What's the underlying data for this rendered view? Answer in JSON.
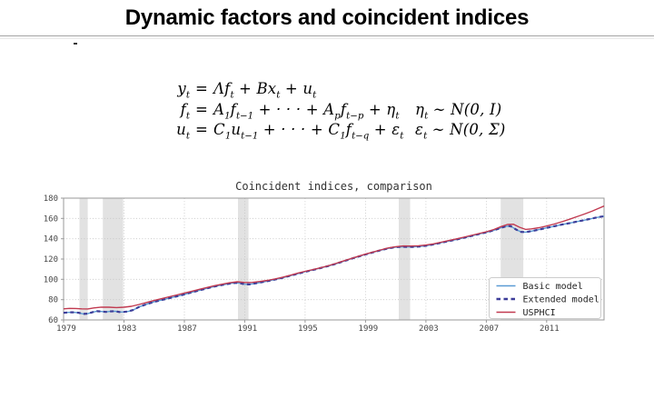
{
  "slide": {
    "title": "Dynamic factors and coincident indices"
  },
  "equations": {
    "rows": [
      {
        "lhs": "y_{t}",
        "rhs": "Λf_{t} + Bx_{t} + u_{t}",
        "dist": ""
      },
      {
        "lhs": "f_{t}",
        "rhs": "A_{1}f_{t−1} + · · · + A_{p}f_{t−p} + η_{t}",
        "dist": "η_{t} ∼ N(0, I)"
      },
      {
        "lhs": "u_{t}",
        "rhs": "C_{1}u_{t−1} + · · · + C_{1}f_{t−q} + ε_{t}",
        "dist": "ε_{t} ∼ N(0, Σ)"
      }
    ]
  },
  "chart_data": {
    "type": "line",
    "title": "Coincident indices, comparison",
    "xlabel": "",
    "ylabel": "",
    "xlim": [
      1979,
      2014.8
    ],
    "ylim": [
      60,
      180
    ],
    "xticks": [
      1979,
      1983,
      1987,
      1991,
      1995,
      1999,
      2003,
      2007,
      2011
    ],
    "yticks": [
      60,
      80,
      100,
      120,
      140,
      160,
      180
    ],
    "grid": true,
    "legend_position": "lower right",
    "recession_bands": [
      [
        1980.05,
        1980.6
      ],
      [
        1981.6,
        1982.95
      ],
      [
        1990.55,
        1991.25
      ],
      [
        2001.2,
        2001.95
      ],
      [
        2007.95,
        2009.45
      ]
    ],
    "colors": {
      "band": "#e2e2e2",
      "grid": "#c4c4c4",
      "frame": "#999999",
      "tick_text": "#444444",
      "legend_border": "#cccccc",
      "background": "#ffffff"
    },
    "series": [
      {
        "name": "Basic model",
        "color": "#5a9bd4",
        "style": "solid",
        "points": [
          [
            1979.0,
            67.0
          ],
          [
            1979.3,
            67.4
          ],
          [
            1979.6,
            67.5
          ],
          [
            1980.0,
            67.1
          ],
          [
            1980.3,
            65.9
          ],
          [
            1980.6,
            66.2
          ],
          [
            1980.9,
            67.5
          ],
          [
            1981.2,
            68.6
          ],
          [
            1981.5,
            68.3
          ],
          [
            1981.8,
            67.9
          ],
          [
            1982.1,
            68.4
          ],
          [
            1982.4,
            68.6
          ],
          [
            1982.7,
            67.8
          ],
          [
            1983.0,
            67.9
          ],
          [
            1983.3,
            68.4
          ],
          [
            1983.6,
            69.8
          ],
          [
            1984.0,
            72.8
          ],
          [
            1984.5,
            75.5
          ],
          [
            1985.0,
            77.8
          ],
          [
            1985.5,
            79.6
          ],
          [
            1986.0,
            81.4
          ],
          [
            1986.5,
            83.3
          ],
          [
            1987.0,
            85.2
          ],
          [
            1987.5,
            87.2
          ],
          [
            1988.0,
            89.2
          ],
          [
            1988.5,
            91.2
          ],
          [
            1989.0,
            93.0
          ],
          [
            1989.5,
            94.5
          ],
          [
            1990.0,
            95.8
          ],
          [
            1990.4,
            96.5
          ],
          [
            1990.7,
            96.2
          ],
          [
            1991.0,
            95.2
          ],
          [
            1991.3,
            95.0
          ],
          [
            1991.6,
            95.7
          ],
          [
            1992.0,
            96.8
          ],
          [
            1992.5,
            98.2
          ],
          [
            1993.0,
            99.8
          ],
          [
            1993.5,
            101.5
          ],
          [
            1994.0,
            103.5
          ],
          [
            1994.5,
            105.5
          ],
          [
            1995.0,
            107.5
          ],
          [
            1995.5,
            109.2
          ],
          [
            1996.0,
            111.0
          ],
          [
            1996.5,
            113.0
          ],
          [
            1997.0,
            115.2
          ],
          [
            1997.5,
            117.6
          ],
          [
            1998.0,
            120.0
          ],
          [
            1998.5,
            122.3
          ],
          [
            1999.0,
            124.5
          ],
          [
            1999.5,
            126.6
          ],
          [
            2000.0,
            128.7
          ],
          [
            2000.5,
            130.5
          ],
          [
            2001.0,
            131.7
          ],
          [
            2001.4,
            132.1
          ],
          [
            2001.8,
            131.9
          ],
          [
            2002.2,
            132.0
          ],
          [
            2002.6,
            132.4
          ],
          [
            2003.0,
            133.1
          ],
          [
            2003.5,
            134.4
          ],
          [
            2004.0,
            136.0
          ],
          [
            2004.5,
            137.6
          ],
          [
            2005.0,
            139.2
          ],
          [
            2005.5,
            140.9
          ],
          [
            2006.0,
            142.7
          ],
          [
            2006.5,
            144.5
          ],
          [
            2007.0,
            146.3
          ],
          [
            2007.5,
            148.3
          ],
          [
            2008.0,
            150.9
          ],
          [
            2008.3,
            152.2
          ],
          [
            2008.6,
            152.5
          ],
          [
            2009.0,
            148.8
          ],
          [
            2009.3,
            146.8
          ],
          [
            2009.6,
            146.5
          ],
          [
            2010.0,
            147.5
          ],
          [
            2010.5,
            149.0
          ],
          [
            2011.0,
            150.7
          ],
          [
            2011.5,
            152.3
          ],
          [
            2012.0,
            153.9
          ],
          [
            2012.5,
            155.3
          ],
          [
            2013.0,
            156.9
          ],
          [
            2013.5,
            158.3
          ],
          [
            2014.0,
            159.9
          ],
          [
            2014.4,
            161.2
          ],
          [
            2014.8,
            162.2
          ]
        ]
      },
      {
        "name": "Extended model",
        "color": "#3d3d99",
        "style": "dashed",
        "points": [
          [
            1979.0,
            67.0
          ],
          [
            1979.3,
            67.4
          ],
          [
            1979.6,
            67.5
          ],
          [
            1980.0,
            67.1
          ],
          [
            1980.3,
            65.9
          ],
          [
            1980.6,
            66.2
          ],
          [
            1980.9,
            67.5
          ],
          [
            1981.2,
            68.6
          ],
          [
            1981.5,
            68.3
          ],
          [
            1981.8,
            67.9
          ],
          [
            1982.1,
            68.4
          ],
          [
            1982.4,
            68.6
          ],
          [
            1982.7,
            67.8
          ],
          [
            1983.0,
            67.9
          ],
          [
            1983.3,
            68.4
          ],
          [
            1983.6,
            69.8
          ],
          [
            1984.0,
            72.8
          ],
          [
            1984.5,
            75.5
          ],
          [
            1985.0,
            77.8
          ],
          [
            1985.5,
            79.6
          ],
          [
            1986.0,
            81.4
          ],
          [
            1986.5,
            83.3
          ],
          [
            1987.0,
            85.2
          ],
          [
            1987.5,
            87.2
          ],
          [
            1988.0,
            89.2
          ],
          [
            1988.5,
            91.2
          ],
          [
            1989.0,
            93.0
          ],
          [
            1989.5,
            94.5
          ],
          [
            1990.0,
            95.8
          ],
          [
            1990.4,
            96.5
          ],
          [
            1990.7,
            96.2
          ],
          [
            1991.0,
            95.2
          ],
          [
            1991.3,
            95.0
          ],
          [
            1991.6,
            95.7
          ],
          [
            1992.0,
            96.8
          ],
          [
            1992.5,
            98.2
          ],
          [
            1993.0,
            99.8
          ],
          [
            1993.5,
            101.5
          ],
          [
            1994.0,
            103.5
          ],
          [
            1994.5,
            105.5
          ],
          [
            1995.0,
            107.5
          ],
          [
            1995.5,
            109.2
          ],
          [
            1996.0,
            111.0
          ],
          [
            1996.5,
            113.0
          ],
          [
            1997.0,
            115.2
          ],
          [
            1997.5,
            117.6
          ],
          [
            1998.0,
            120.0
          ],
          [
            1998.5,
            122.3
          ],
          [
            1999.0,
            124.5
          ],
          [
            1999.5,
            126.6
          ],
          [
            2000.0,
            128.7
          ],
          [
            2000.5,
            130.5
          ],
          [
            2001.0,
            131.7
          ],
          [
            2001.4,
            132.1
          ],
          [
            2001.8,
            131.9
          ],
          [
            2002.2,
            132.0
          ],
          [
            2002.6,
            132.4
          ],
          [
            2003.0,
            133.1
          ],
          [
            2003.5,
            134.4
          ],
          [
            2004.0,
            136.0
          ],
          [
            2004.5,
            137.6
          ],
          [
            2005.0,
            139.2
          ],
          [
            2005.5,
            140.9
          ],
          [
            2006.0,
            142.7
          ],
          [
            2006.5,
            144.5
          ],
          [
            2007.0,
            146.3
          ],
          [
            2007.5,
            148.3
          ],
          [
            2008.0,
            150.9
          ],
          [
            2008.3,
            152.2
          ],
          [
            2008.6,
            152.5
          ],
          [
            2009.0,
            148.8
          ],
          [
            2009.3,
            146.8
          ],
          [
            2009.6,
            146.5
          ],
          [
            2010.0,
            147.5
          ],
          [
            2010.5,
            149.0
          ],
          [
            2011.0,
            150.7
          ],
          [
            2011.5,
            152.3
          ],
          [
            2012.0,
            153.9
          ],
          [
            2012.5,
            155.3
          ],
          [
            2013.0,
            156.9
          ],
          [
            2013.5,
            158.3
          ],
          [
            2014.0,
            159.9
          ],
          [
            2014.4,
            161.2
          ],
          [
            2014.8,
            162.2
          ]
        ]
      },
      {
        "name": "USPHCI",
        "color": "#c13a50",
        "style": "solid",
        "points": [
          [
            1979.0,
            70.9
          ],
          [
            1979.4,
            71.4
          ],
          [
            1979.8,
            71.3
          ],
          [
            1980.2,
            70.9
          ],
          [
            1980.6,
            70.8
          ],
          [
            1981.0,
            71.8
          ],
          [
            1981.5,
            72.6
          ],
          [
            1982.0,
            72.5
          ],
          [
            1982.5,
            72.2
          ],
          [
            1983.0,
            72.5
          ],
          [
            1983.5,
            73.4
          ],
          [
            1984.0,
            75.2
          ],
          [
            1984.5,
            77.2
          ],
          [
            1985.0,
            79.2
          ],
          [
            1985.5,
            81.0
          ],
          [
            1986.0,
            82.8
          ],
          [
            1986.5,
            84.6
          ],
          [
            1987.0,
            86.5
          ],
          [
            1987.5,
            88.3
          ],
          [
            1988.0,
            90.2
          ],
          [
            1988.5,
            92.0
          ],
          [
            1989.0,
            93.8
          ],
          [
            1989.5,
            95.2
          ],
          [
            1990.0,
            96.6
          ],
          [
            1990.5,
            97.6
          ],
          [
            1991.0,
            96.9
          ],
          [
            1991.5,
            97.0
          ],
          [
            1992.0,
            97.9
          ],
          [
            1992.5,
            99.0
          ],
          [
            1993.0,
            100.4
          ],
          [
            1993.5,
            102.0
          ],
          [
            1994.0,
            104.0
          ],
          [
            1994.5,
            106.0
          ],
          [
            1995.0,
            107.9
          ],
          [
            1995.5,
            109.5
          ],
          [
            1996.0,
            111.3
          ],
          [
            1996.5,
            113.3
          ],
          [
            1997.0,
            115.5
          ],
          [
            1997.5,
            117.9
          ],
          [
            1998.0,
            120.3
          ],
          [
            1998.5,
            122.6
          ],
          [
            1999.0,
            124.8
          ],
          [
            1999.5,
            126.9
          ],
          [
            2000.0,
            129.0
          ],
          [
            2000.5,
            130.9
          ],
          [
            2001.0,
            132.2
          ],
          [
            2001.5,
            132.9
          ],
          [
            2002.0,
            132.8
          ],
          [
            2002.5,
            133.1
          ],
          [
            2003.0,
            133.8
          ],
          [
            2003.5,
            135.0
          ],
          [
            2004.0,
            136.6
          ],
          [
            2004.5,
            138.2
          ],
          [
            2005.0,
            139.8
          ],
          [
            2005.5,
            141.5
          ],
          [
            2006.0,
            143.3
          ],
          [
            2006.5,
            145.1
          ],
          [
            2007.0,
            146.9
          ],
          [
            2007.5,
            149.1
          ],
          [
            2008.0,
            152.1
          ],
          [
            2008.4,
            154.0
          ],
          [
            2008.8,
            154.3
          ],
          [
            2009.2,
            151.3
          ],
          [
            2009.6,
            149.2
          ],
          [
            2010.0,
            149.7
          ],
          [
            2010.5,
            150.9
          ],
          [
            2011.0,
            152.5
          ],
          [
            2011.5,
            154.5
          ],
          [
            2012.0,
            156.7
          ],
          [
            2012.5,
            159.1
          ],
          [
            2013.0,
            161.7
          ],
          [
            2013.5,
            164.3
          ],
          [
            2014.0,
            167.1
          ],
          [
            2014.4,
            169.7
          ],
          [
            2014.8,
            172.2
          ]
        ]
      }
    ]
  }
}
